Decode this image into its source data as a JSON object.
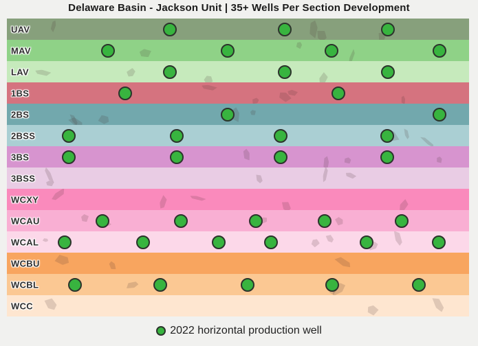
{
  "title": "Delaware Basin - Jackson Unit | 35+ Wells Per Section Development",
  "legend": {
    "label": "2022 horizontal production well",
    "marker_color": "#38b43f"
  },
  "chart_data": {
    "type": "scatter",
    "title": "Delaware Basin - Jackson Unit | 35+ Wells Per Section Development",
    "legend_entries": [
      "2022 horizontal production well"
    ],
    "x_axis": "lateral position across section (no visible ticks)",
    "y_axis": "stratigraphic zone bands, top to bottom",
    "marker": {
      "shape": "circle",
      "fill": "#38b43f",
      "stroke": "#2c332c"
    },
    "rows": [
      {
        "label": "UAV",
        "color": "#87a07c",
        "wells_x_pct": [
          35.3,
          60.1,
          82.4
        ]
      },
      {
        "label": "MAV",
        "color": "#8fd287",
        "wells_x_pct": [
          21.9,
          47.8,
          70.2,
          93.6
        ]
      },
      {
        "label": "LAV",
        "color": "#c6eabc",
        "wells_x_pct": [
          35.3,
          60.1,
          82.4
        ]
      },
      {
        "label": "1BS",
        "color": "#d5737f",
        "wells_x_pct": [
          25.6,
          71.7
        ]
      },
      {
        "label": "2BS",
        "color": "#72a8ad",
        "wells_x_pct": [
          47.8,
          93.6
        ]
      },
      {
        "label": "2BSS",
        "color": "#aacfd3",
        "wells_x_pct": [
          13.4,
          36.8,
          59.2,
          82.3
        ]
      },
      {
        "label": "3BS",
        "color": "#d794cf",
        "wells_x_pct": [
          13.4,
          36.8,
          59.2,
          82.3
        ]
      },
      {
        "label": "3BSS",
        "color": "#e9cce4",
        "wells_x_pct": []
      },
      {
        "label": "WCXY",
        "color": "#fa8abc",
        "wells_x_pct": []
      },
      {
        "label": "WCAU",
        "color": "#f9afd3",
        "wells_x_pct": [
          20.7,
          37.6,
          53.9,
          68.8,
          85.4
        ]
      },
      {
        "label": "WCAL",
        "color": "#fcd8e9",
        "wells_x_pct": [
          12.5,
          29.5,
          45.8,
          57.1,
          77.8,
          93.5
        ]
      },
      {
        "label": "WCBU",
        "color": "#f8a55f",
        "wells_x_pct": []
      },
      {
        "label": "WCBL",
        "color": "#fbc893",
        "wells_x_pct": [
          14.7,
          33.2,
          52.1,
          70.4,
          89.1
        ]
      },
      {
        "label": "WCC",
        "color": "#fee6d0",
        "wells_x_pct": []
      }
    ]
  }
}
